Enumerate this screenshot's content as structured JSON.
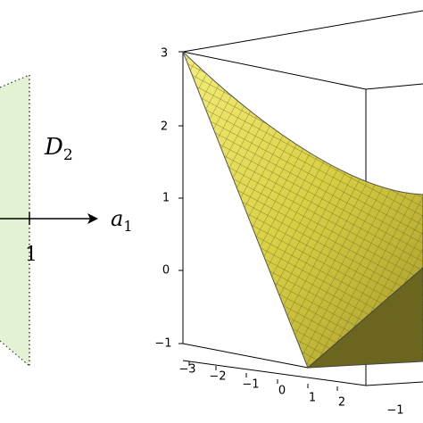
{
  "left_panel": {
    "region_label": "D",
    "region_subscript": "2",
    "axis_label": "a",
    "axis_subscript": "1",
    "tick_label": "1"
  },
  "right_panel": {
    "z_ticks": [
      "3",
      "2",
      "1",
      "0",
      "−1"
    ],
    "x_ticks": [
      "−3",
      "−2",
      "−1",
      "0",
      "1",
      "2"
    ],
    "y_ticks": [
      "−1"
    ]
  }
}
